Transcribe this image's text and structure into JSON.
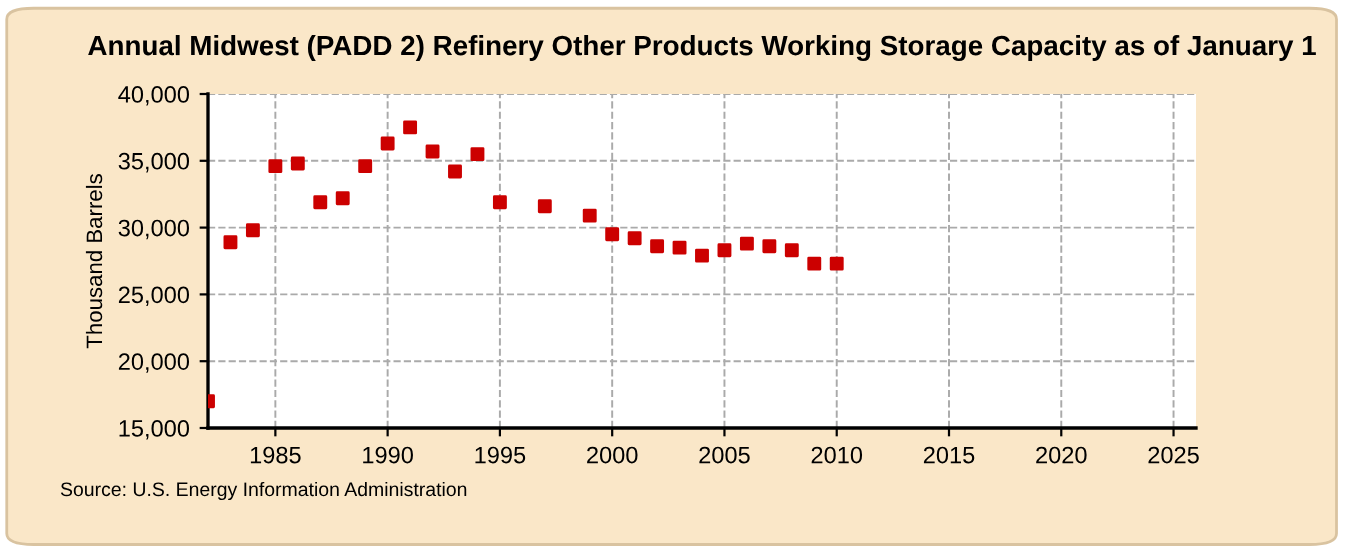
{
  "chart_data": {
    "type": "scatter",
    "title": "Annual Midwest (PADD 2) Refinery Other Products Working Storage Capacity as of January 1",
    "ylabel": "Thousand Barrels",
    "x": [
      1982,
      1983,
      1984,
      1985,
      1986,
      1987,
      1988,
      1989,
      1990,
      1991,
      1992,
      1993,
      1994,
      1995,
      1997,
      1999,
      2000,
      2001,
      2002,
      2003,
      2004,
      2005,
      2006,
      2007,
      2008,
      2009,
      2010
    ],
    "series": [
      {
        "color": "#cc0000",
        "values": [
          17000,
          28900,
          29800,
          34600,
          34800,
          31900,
          32200,
          34600,
          36300,
          37500,
          35700,
          34200,
          35500,
          31900,
          31600,
          30900,
          29500,
          29200,
          28600,
          28500,
          27900,
          28300,
          28800,
          28600,
          28300,
          27300,
          27300
        ]
      }
    ],
    "xlim": [
      1982,
      2026
    ],
    "xticks": [
      1985,
      1990,
      1995,
      2000,
      2005,
      2010,
      2015,
      2020,
      2025
    ],
    "ylim": [
      15000,
      40000
    ],
    "yticks": [
      {
        "value": 15000,
        "label": "15,000"
      },
      {
        "value": 20000,
        "label": "20,000"
      },
      {
        "value": 25000,
        "label": "25,000"
      },
      {
        "value": 30000,
        "label": "30,000"
      },
      {
        "value": 35000,
        "label": "35,000"
      },
      {
        "value": 40000,
        "label": "40,000"
      }
    ],
    "grid": true,
    "marker": "square",
    "annotations": [
      "Source: U.S. Energy Information Administration"
    ]
  }
}
